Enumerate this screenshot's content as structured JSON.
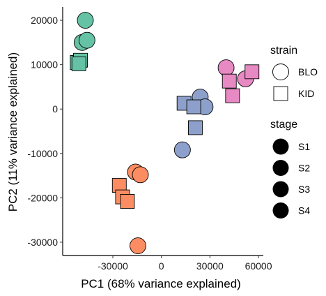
{
  "chart_data": {
    "type": "scatter",
    "title": "",
    "xlabel": "PC1 (68% variance explained)",
    "ylabel": "PC2 (11% variance explained)",
    "xlim": [
      -61000,
      63000
    ],
    "ylim": [
      -33000,
      23000
    ],
    "x_ticks": [
      -30000,
      0,
      30000,
      60000
    ],
    "x_tick_labels": [
      "-30000",
      "0",
      "30000",
      "60000"
    ],
    "y_ticks": [
      -30000,
      -20000,
      -10000,
      0,
      10000,
      20000
    ],
    "y_tick_labels": [
      "-30000",
      "-20000",
      "-10000",
      "0",
      "10000",
      "20000"
    ],
    "grid": false,
    "legend_placement": "right",
    "legend_strain": {
      "title": "strain",
      "items": [
        {
          "label": "BLO",
          "shape": "circle"
        },
        {
          "label": "KID",
          "shape": "square"
        }
      ]
    },
    "legend_stage": {
      "title": "stage",
      "items": [
        {
          "label": "S1",
          "color": "#66c2a5"
        },
        {
          "label": "S2",
          "color": "#fc8d62"
        },
        {
          "label": "S3",
          "color": "#8da0cb"
        },
        {
          "label": "S4",
          "color": "#e78ac3"
        }
      ]
    },
    "points": [
      {
        "x": -47000,
        "y": 20000,
        "strain": "BLO",
        "stage": "S1"
      },
      {
        "x": -49000,
        "y": 15000,
        "strain": "BLO",
        "stage": "S1"
      },
      {
        "x": -46000,
        "y": 15500,
        "strain": "BLO",
        "stage": "S1"
      },
      {
        "x": -52000,
        "y": 10500,
        "strain": "KID",
        "stage": "S1"
      },
      {
        "x": -50000,
        "y": 11000,
        "strain": "KID",
        "stage": "S1"
      },
      {
        "x": -51000,
        "y": 10200,
        "strain": "KID",
        "stage": "S1"
      },
      {
        "x": -16000,
        "y": -14200,
        "strain": "BLO",
        "stage": "S2"
      },
      {
        "x": -13000,
        "y": -14800,
        "strain": "BLO",
        "stage": "S2"
      },
      {
        "x": -14500,
        "y": -30800,
        "strain": "BLO",
        "stage": "S2"
      },
      {
        "x": -26000,
        "y": -17200,
        "strain": "KID",
        "stage": "S2"
      },
      {
        "x": -24000,
        "y": -19800,
        "strain": "KID",
        "stage": "S2"
      },
      {
        "x": -21000,
        "y": -20800,
        "strain": "KID",
        "stage": "S2"
      },
      {
        "x": 24000,
        "y": 2700,
        "strain": "BLO",
        "stage": "S3"
      },
      {
        "x": 27000,
        "y": 500,
        "strain": "BLO",
        "stage": "S3"
      },
      {
        "x": 13000,
        "y": -9200,
        "strain": "BLO",
        "stage": "S3"
      },
      {
        "x": 14000,
        "y": 1300,
        "strain": "KID",
        "stage": "S3"
      },
      {
        "x": 20000,
        "y": 500,
        "strain": "KID",
        "stage": "S3"
      },
      {
        "x": 21000,
        "y": -4200,
        "strain": "KID",
        "stage": "S3"
      },
      {
        "x": 40000,
        "y": 9300,
        "strain": "BLO",
        "stage": "S4"
      },
      {
        "x": 52000,
        "y": 6800,
        "strain": "BLO",
        "stage": "S4"
      },
      {
        "x": 56000,
        "y": 8400,
        "strain": "KID",
        "stage": "S4"
      },
      {
        "x": 42000,
        "y": 6300,
        "strain": "KID",
        "stage": "S4"
      },
      {
        "x": 44000,
        "y": 3000,
        "strain": "KID",
        "stage": "S4"
      }
    ]
  }
}
